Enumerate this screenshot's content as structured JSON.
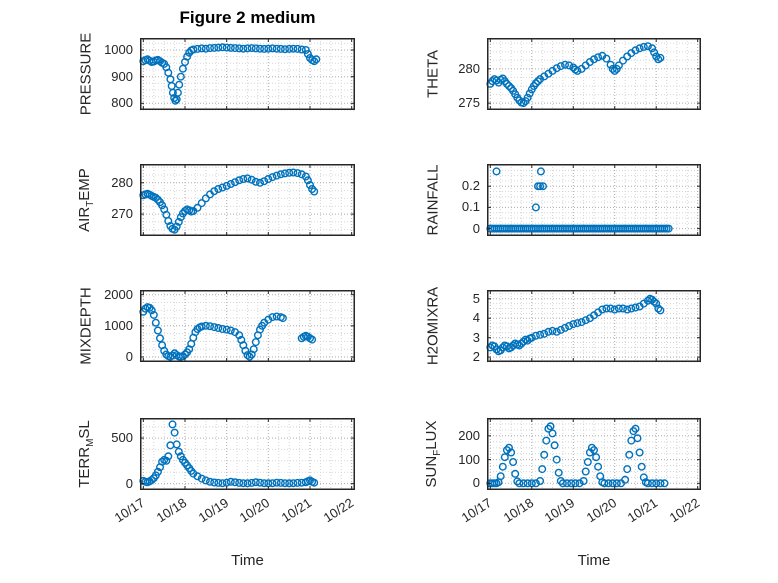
{
  "title": "Figure 2 medium",
  "xlabel": "Time",
  "axis_color": "#262626",
  "grid_major_color": "#ababab",
  "grid_minor_color": "#d6d6d6",
  "chart_data": {
    "type": "scatter",
    "marker": "open-circle",
    "marker_color": "#0072BD",
    "x_tick_values": [
      0,
      1,
      2,
      3,
      4,
      5
    ],
    "x_tick_labels": [
      "10/17",
      "10/18",
      "10/19",
      "10/20",
      "10/21",
      "10/22"
    ],
    "xlim": [
      -0.08,
      5.08
    ],
    "subplots": [
      {
        "name": "pressure",
        "ylabel_parts": [
          {
            "text": "PRESSURE"
          }
        ],
        "yticks": [
          800,
          900,
          1000
        ],
        "ylim": [
          775,
          1045
        ],
        "show_x_tick_labels": false,
        "x": [
          0,
          0.05,
          0.1,
          0.15,
          0.2,
          0.25,
          0.3,
          0.35,
          0.4,
          0.45,
          0.5,
          0.55,
          0.6,
          0.65,
          0.68,
          0.71,
          0.74,
          0.77,
          0.8,
          0.83,
          0.86,
          0.9,
          0.95,
          1.0,
          1.05,
          1.1,
          1.15,
          1.2,
          1.3,
          1.4,
          1.5,
          1.6,
          1.7,
          1.8,
          1.9,
          2.0,
          2.1,
          2.2,
          2.3,
          2.4,
          2.5,
          2.6,
          2.7,
          2.8,
          2.9,
          3.0,
          3.1,
          3.2,
          3.3,
          3.4,
          3.5,
          3.6,
          3.7,
          3.8,
          3.9,
          3.95,
          4.0,
          4.05,
          4.1,
          4.15
        ],
        "y": [
          958,
          962,
          965,
          960,
          955,
          957,
          961,
          963,
          958,
          952,
          948,
          935,
          915,
          890,
          865,
          840,
          820,
          810,
          815,
          840,
          870,
          900,
          930,
          955,
          975,
          990,
          998,
          1002,
          1004,
          1006,
          1005,
          1007,
          1008,
          1009,
          1010,
          1009,
          1008,
          1007,
          1006,
          1005,
          1006,
          1007,
          1006,
          1005,
          1004,
          1005,
          1006,
          1005,
          1004,
          1003,
          1004,
          1005,
          1004,
          1002,
          1000,
          985,
          970,
          962,
          958,
          965
        ]
      },
      {
        "name": "theta",
        "ylabel_parts": [
          {
            "text": "THETA"
          }
        ],
        "yticks": [
          275,
          280
        ],
        "ylim": [
          274,
          284.5
        ],
        "show_x_tick_labels": false,
        "x": [
          0,
          0.05,
          0.1,
          0.15,
          0.2,
          0.25,
          0.3,
          0.35,
          0.4,
          0.45,
          0.5,
          0.55,
          0.6,
          0.65,
          0.7,
          0.75,
          0.8,
          0.85,
          0.9,
          0.95,
          1.0,
          1.05,
          1.1,
          1.15,
          1.2,
          1.3,
          1.4,
          1.5,
          1.6,
          1.7,
          1.8,
          1.9,
          2.0,
          2.05,
          2.1,
          2.2,
          2.3,
          2.4,
          2.5,
          2.6,
          2.7,
          2.8,
          2.9,
          2.95,
          3.0,
          3.05,
          3.1,
          3.2,
          3.3,
          3.4,
          3.5,
          3.6,
          3.7,
          3.8,
          3.9,
          3.95,
          4.0,
          4.05,
          4.1
        ],
        "y": [
          277.8,
          278.2,
          278.5,
          278.3,
          278.0,
          278.4,
          278.6,
          278.2,
          277.8,
          277.5,
          277.2,
          276.8,
          276.3,
          275.8,
          275.4,
          275.1,
          275.0,
          275.3,
          275.8,
          276.4,
          277.0,
          277.5,
          277.9,
          278.2,
          278.5,
          278.9,
          279.3,
          279.7,
          280.1,
          280.4,
          280.6,
          280.5,
          280.2,
          279.9,
          279.7,
          280.0,
          280.5,
          281.0,
          281.4,
          281.7,
          281.9,
          281.5,
          280.6,
          280.0,
          279.7,
          280.0,
          280.5,
          281.2,
          281.8,
          282.3,
          282.7,
          283.0,
          283.2,
          283.3,
          283.0,
          282.4,
          281.8,
          281.4,
          281.6
        ]
      },
      {
        "name": "air-temp",
        "ylabel_parts": [
          {
            "text": "AIR"
          },
          {
            "text": "T",
            "sub": true
          },
          {
            "text": "EMP"
          }
        ],
        "yticks": [
          270,
          280
        ],
        "ylim": [
          263,
          286
        ],
        "show_x_tick_labels": false,
        "x": [
          0,
          0.05,
          0.1,
          0.15,
          0.2,
          0.25,
          0.3,
          0.35,
          0.4,
          0.45,
          0.5,
          0.55,
          0.6,
          0.65,
          0.7,
          0.75,
          0.8,
          0.85,
          0.9,
          0.95,
          1.0,
          1.05,
          1.1,
          1.15,
          1.2,
          1.3,
          1.4,
          1.5,
          1.6,
          1.7,
          1.8,
          1.9,
          2.0,
          2.1,
          2.2,
          2.3,
          2.4,
          2.5,
          2.6,
          2.7,
          2.8,
          2.9,
          3.0,
          3.1,
          3.2,
          3.3,
          3.4,
          3.5,
          3.6,
          3.7,
          3.8,
          3.9,
          3.95,
          4.0,
          4.05,
          4.1
        ],
        "y": [
          276.0,
          276.3,
          276.5,
          276.2,
          275.8,
          275.5,
          275.2,
          274.6,
          273.8,
          272.8,
          271.5,
          269.8,
          267.8,
          266.2,
          265.3,
          265.0,
          266.0,
          267.5,
          269.0,
          270.2,
          271.0,
          271.5,
          271.2,
          270.8,
          271.0,
          272.0,
          273.5,
          275.0,
          276.3,
          277.3,
          278.0,
          278.5,
          279.0,
          279.6,
          280.2,
          280.8,
          281.2,
          281.4,
          281.0,
          280.3,
          280.0,
          280.5,
          281.2,
          281.8,
          282.3,
          282.7,
          283.0,
          283.2,
          283.3,
          283.1,
          282.7,
          282.0,
          280.8,
          279.3,
          278.0,
          277.2
        ]
      },
      {
        "name": "rainfall",
        "ylabel_parts": [
          {
            "text": "RAINFALL"
          }
        ],
        "yticks": [
          0,
          0.1,
          0.2
        ],
        "ylim": [
          -0.035,
          0.305
        ],
        "show_x_tick_labels": false,
        "x": [
          0,
          0.05,
          0.1,
          0.15,
          0.2,
          0.25,
          0.3,
          0.35,
          0.4,
          0.45,
          0.5,
          0.55,
          0.6,
          0.65,
          0.7,
          0.75,
          0.8,
          0.85,
          0.9,
          0.95,
          1,
          1.05,
          1.1,
          1.15,
          1.2,
          1.25,
          1.3,
          1.35,
          1.4,
          1.45,
          1.5,
          1.55,
          1.6,
          1.65,
          1.7,
          1.75,
          1.8,
          1.85,
          1.9,
          1.95,
          2,
          2.05,
          2.1,
          2.15,
          2.2,
          2.25,
          2.3,
          2.35,
          2.4,
          2.45,
          2.5,
          2.55,
          2.6,
          2.65,
          2.7,
          2.75,
          2.8,
          2.85,
          2.9,
          2.95,
          3,
          3.05,
          3.1,
          3.15,
          3.2,
          3.25,
          3.3,
          3.35,
          3.4,
          3.45,
          3.5,
          3.55,
          3.6,
          3.65,
          3.7,
          3.75,
          3.8,
          3.85,
          3.9,
          3.95,
          4,
          4.05,
          4.1,
          4.15,
          4.2,
          4.25,
          4.3,
          0.15,
          1.1,
          1.15,
          1.2,
          1.22,
          1.27
        ],
        "y": [
          0,
          0,
          0,
          0,
          0,
          0,
          0,
          0,
          0,
          0,
          0,
          0,
          0,
          0,
          0,
          0,
          0,
          0,
          0,
          0,
          0,
          0,
          0,
          0,
          0,
          0,
          0,
          0,
          0,
          0,
          0,
          0,
          0,
          0,
          0,
          0,
          0,
          0,
          0,
          0,
          0,
          0,
          0,
          0,
          0,
          0,
          0,
          0,
          0,
          0,
          0,
          0,
          0,
          0,
          0,
          0,
          0,
          0,
          0,
          0,
          0,
          0,
          0,
          0,
          0,
          0,
          0,
          0,
          0,
          0,
          0,
          0,
          0,
          0,
          0,
          0,
          0,
          0,
          0,
          0,
          0,
          0,
          0,
          0,
          0,
          0,
          0,
          0.27,
          0.1,
          0.2,
          0.2,
          0.27,
          0.2
        ]
      },
      {
        "name": "mixdepth",
        "ylabel_parts": [
          {
            "text": "MIXDEPTH"
          }
        ],
        "yticks": [
          0,
          1000,
          2000
        ],
        "ylim": [
          -160,
          2150
        ],
        "show_x_tick_labels": false,
        "x": [
          0,
          0.05,
          0.1,
          0.15,
          0.2,
          0.25,
          0.3,
          0.35,
          0.4,
          0.45,
          0.5,
          0.55,
          0.6,
          0.65,
          0.7,
          0.75,
          0.8,
          0.85,
          0.9,
          0.95,
          1.0,
          1.05,
          1.1,
          1.15,
          1.2,
          1.25,
          1.3,
          1.35,
          1.4,
          1.5,
          1.6,
          1.7,
          1.8,
          1.9,
          2.0,
          2.1,
          2.2,
          2.3,
          2.35,
          2.4,
          2.45,
          2.5,
          2.55,
          2.6,
          2.65,
          2.7,
          2.75,
          2.8,
          2.85,
          2.9,
          3.0,
          3.1,
          3.2,
          3.3,
          3.35,
          3.8,
          3.85,
          3.9,
          3.95,
          4.0,
          4.05
        ],
        "y": [
          1450,
          1550,
          1600,
          1580,
          1500,
          1350,
          1100,
          850,
          600,
          380,
          200,
          80,
          30,
          10,
          50,
          120,
          60,
          20,
          10,
          30,
          80,
          150,
          250,
          420,
          620,
          800,
          900,
          950,
          980,
          1000,
          990,
          960,
          930,
          900,
          880,
          850,
          800,
          700,
          550,
          380,
          200,
          60,
          10,
          80,
          250,
          480,
          700,
          880,
          1000,
          1100,
          1200,
          1280,
          1300,
          1280,
          1250,
          600,
          650,
          680,
          650,
          600,
          560
        ]
      },
      {
        "name": "h2omixra",
        "ylabel_parts": [
          {
            "text": "H2OMIXRA"
          }
        ],
        "yticks": [
          2,
          3,
          4,
          5
        ],
        "ylim": [
          1.75,
          5.45
        ],
        "show_x_tick_labels": false,
        "x": [
          0,
          0.05,
          0.1,
          0.15,
          0.2,
          0.25,
          0.3,
          0.35,
          0.4,
          0.45,
          0.5,
          0.55,
          0.6,
          0.65,
          0.7,
          0.75,
          0.8,
          0.85,
          0.9,
          0.95,
          1.0,
          1.1,
          1.2,
          1.3,
          1.4,
          1.5,
          1.6,
          1.7,
          1.8,
          1.9,
          2.0,
          2.1,
          2.2,
          2.3,
          2.4,
          2.5,
          2.6,
          2.7,
          2.8,
          2.9,
          3.0,
          3.1,
          3.2,
          3.3,
          3.4,
          3.5,
          3.6,
          3.7,
          3.8,
          3.85,
          3.9,
          3.95,
          4.0,
          4.05,
          4.1
        ],
        "y": [
          2.5,
          2.6,
          2.55,
          2.4,
          2.3,
          2.35,
          2.5,
          2.6,
          2.55,
          2.45,
          2.5,
          2.6,
          2.7,
          2.65,
          2.6,
          2.7,
          2.8,
          2.9,
          2.85,
          2.95,
          3.0,
          3.1,
          3.15,
          3.2,
          3.3,
          3.35,
          3.3,
          3.4,
          3.5,
          3.6,
          3.7,
          3.75,
          3.8,
          3.9,
          4.0,
          4.15,
          4.3,
          4.45,
          4.5,
          4.5,
          4.45,
          4.5,
          4.5,
          4.45,
          4.5,
          4.55,
          4.6,
          4.75,
          4.9,
          5.0,
          4.95,
          4.85,
          4.75,
          4.5,
          4.4
        ]
      },
      {
        "name": "terr-msl",
        "ylabel_parts": [
          {
            "text": "TERR"
          },
          {
            "text": "M",
            "sub": true
          },
          {
            "text": "SL"
          }
        ],
        "yticks": [
          0,
          500
        ],
        "ylim": [
          -70,
          720
        ],
        "show_x_tick_labels": true,
        "x": [
          0,
          0.05,
          0.1,
          0.15,
          0.2,
          0.25,
          0.3,
          0.35,
          0.4,
          0.45,
          0.5,
          0.55,
          0.6,
          0.65,
          0.7,
          0.75,
          0.8,
          0.85,
          0.9,
          0.95,
          1.0,
          1.05,
          1.1,
          1.15,
          1.2,
          1.3,
          1.4,
          1.5,
          1.6,
          1.7,
          1.8,
          1.9,
          2.0,
          2.1,
          2.2,
          2.3,
          2.4,
          2.5,
          2.6,
          2.7,
          2.8,
          2.9,
          3.0,
          3.1,
          3.2,
          3.3,
          3.4,
          3.5,
          3.6,
          3.7,
          3.8,
          3.9,
          3.95,
          4.0,
          4.05,
          4.1
        ],
        "y": [
          30,
          20,
          15,
          25,
          40,
          60,
          90,
          130,
          180,
          240,
          260,
          250,
          300,
          420,
          650,
          560,
          430,
          350,
          300,
          260,
          230,
          200,
          170,
          140,
          110,
          80,
          55,
          35,
          20,
          12,
          8,
          5,
          10,
          20,
          15,
          8,
          5,
          3,
          8,
          15,
          10,
          5,
          3,
          5,
          10,
          8,
          5,
          3,
          5,
          8,
          10,
          15,
          25,
          35,
          20,
          10
        ]
      },
      {
        "name": "sun-flux",
        "ylabel_parts": [
          {
            "text": "SUN"
          },
          {
            "text": "F",
            "sub": true
          },
          {
            "text": "LUX"
          }
        ],
        "yticks": [
          0,
          100,
          200
        ],
        "ylim": [
          -28,
          275
        ],
        "show_x_tick_labels": true,
        "x": [
          0,
          0.05,
          0.1,
          0.15,
          0.2,
          0.25,
          0.3,
          0.35,
          0.4,
          0.45,
          0.5,
          0.55,
          0.6,
          0.65,
          0.7,
          0.8,
          0.9,
          1.0,
          1.1,
          1.2,
          1.25,
          1.3,
          1.35,
          1.4,
          1.45,
          1.5,
          1.55,
          1.6,
          1.65,
          1.7,
          1.75,
          1.85,
          1.95,
          2.05,
          2.15,
          2.25,
          2.3,
          2.35,
          2.4,
          2.45,
          2.5,
          2.55,
          2.6,
          2.65,
          2.7,
          2.75,
          2.85,
          2.95,
          3.05,
          3.15,
          3.25,
          3.3,
          3.35,
          3.4,
          3.45,
          3.5,
          3.55,
          3.6,
          3.65,
          3.7,
          3.75,
          3.8,
          3.9,
          4.0,
          4.1,
          4.2
        ],
        "y": [
          0,
          0,
          0,
          0,
          5,
          30,
          70,
          110,
          140,
          150,
          130,
          90,
          40,
          8,
          0,
          0,
          0,
          0,
          0,
          10,
          60,
          120,
          180,
          230,
          240,
          210,
          160,
          100,
          45,
          10,
          0,
          0,
          0,
          0,
          0,
          10,
          50,
          90,
          130,
          150,
          140,
          110,
          70,
          30,
          5,
          0,
          0,
          0,
          0,
          0,
          15,
          60,
          120,
          180,
          220,
          230,
          190,
          130,
          70,
          25,
          5,
          0,
          0,
          0,
          0,
          0
        ]
      }
    ]
  }
}
